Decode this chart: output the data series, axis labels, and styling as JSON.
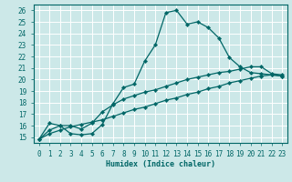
{
  "xlabel": "Humidex (Indice chaleur)",
  "bg_color": "#cce8e8",
  "line_color": "#006666",
  "grid_color": "#ffffff",
  "xlim": [
    -0.5,
    23.5
  ],
  "ylim": [
    14.5,
    26.5
  ],
  "xticks": [
    0,
    1,
    2,
    3,
    4,
    5,
    6,
    7,
    8,
    9,
    10,
    11,
    12,
    13,
    14,
    15,
    16,
    17,
    18,
    19,
    20,
    21,
    22,
    23
  ],
  "yticks": [
    15,
    16,
    17,
    18,
    19,
    20,
    21,
    22,
    23,
    24,
    25,
    26
  ],
  "series1_x": [
    0,
    1,
    2,
    3,
    4,
    5,
    6,
    7,
    8,
    9,
    10,
    11,
    12,
    13,
    14,
    15,
    16,
    17,
    18,
    19,
    20,
    21,
    22,
    23
  ],
  "series1_y": [
    14.8,
    16.2,
    16.0,
    15.3,
    15.2,
    15.3,
    16.1,
    17.9,
    19.3,
    19.6,
    21.6,
    23.0,
    25.8,
    26.0,
    24.8,
    25.0,
    24.5,
    23.6,
    21.9,
    21.1,
    20.6,
    20.5,
    20.4,
    20.3
  ],
  "series2_x": [
    0,
    1,
    2,
    3,
    4,
    5,
    6,
    7,
    8,
    9,
    10,
    11,
    12,
    13,
    14,
    15,
    16,
    17,
    18,
    19,
    20,
    21,
    22,
    23
  ],
  "series2_y": [
    14.8,
    15.6,
    16.0,
    16.0,
    15.7,
    16.2,
    17.2,
    17.8,
    18.3,
    18.6,
    18.9,
    19.1,
    19.4,
    19.7,
    20.0,
    20.2,
    20.4,
    20.6,
    20.7,
    20.9,
    21.1,
    21.1,
    20.5,
    20.4
  ],
  "series3_x": [
    0,
    1,
    2,
    3,
    4,
    5,
    6,
    7,
    8,
    9,
    10,
    11,
    12,
    13,
    14,
    15,
    16,
    17,
    18,
    19,
    20,
    21,
    22,
    23
  ],
  "series3_y": [
    14.8,
    15.3,
    15.6,
    15.9,
    16.1,
    16.3,
    16.5,
    16.8,
    17.1,
    17.4,
    17.6,
    17.9,
    18.2,
    18.4,
    18.7,
    18.9,
    19.2,
    19.4,
    19.7,
    19.9,
    20.1,
    20.3,
    20.4,
    20.3
  ]
}
